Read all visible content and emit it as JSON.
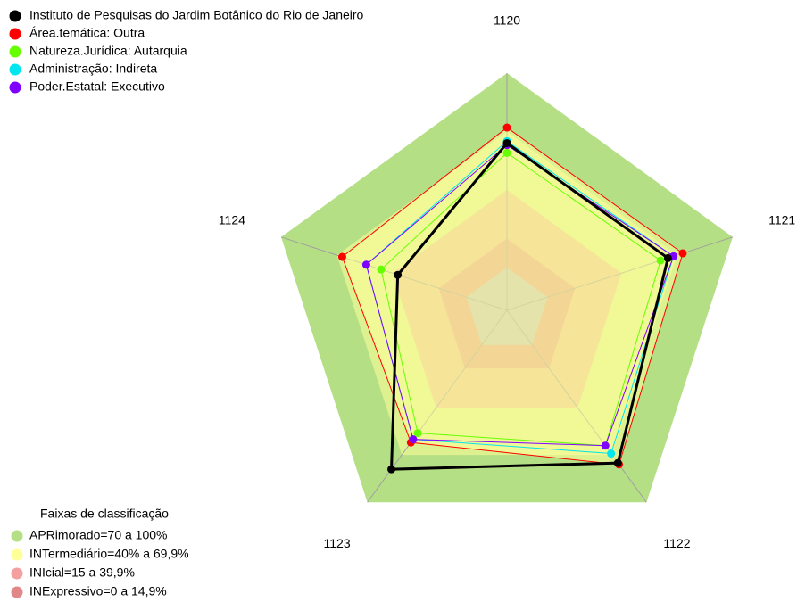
{
  "chart_data": {
    "type": "radar",
    "categories": [
      "1120",
      "1121",
      "1122",
      "1123",
      "1124"
    ],
    "ylim": [
      -22,
      100
    ],
    "series": [
      {
        "name": "Instituto de Pesquisas do Jardim Botânico do Rio de Janeiro",
        "color": "#000000",
        "values": [
          64,
          65,
          75,
          79,
          37
        ]
      },
      {
        "name": "Área.temática: Outra",
        "color": "#ff0000",
        "fill": "#ffff99",
        "values": [
          72,
          73,
          76,
          62,
          67
        ]
      },
      {
        "name": "Natureza.Jurídica: Autarquia",
        "color": "#66ff00",
        "values": [
          59,
          61,
          64,
          56,
          46
        ]
      },
      {
        "name": "Administração: Indireta",
        "color": "#00e5ee",
        "values": [
          65,
          68,
          69,
          60,
          54
        ]
      },
      {
        "name": "Poder.Estatal: Executivo",
        "color": "#7f00ff",
        "values": [
          63,
          68,
          64,
          60,
          54
        ]
      }
    ],
    "bands_title": "Faixas de classificação",
    "bands": [
      {
        "name": "APRimorado=70 a 100%",
        "color": "#b5df85",
        "range": [
          70,
          100
        ]
      },
      {
        "name": "INTermediário=40% a 69,9%",
        "color": "#ffff99",
        "range": [
          40,
          69.9
        ]
      },
      {
        "name": "INIcial=15 a 39,9%",
        "color": "#f4a0a0",
        "range": [
          15,
          39.9
        ]
      },
      {
        "name": "INExpressivo=0 a 14,9%",
        "color": "#e08888",
        "range": [
          0,
          14.9
        ]
      }
    ]
  }
}
